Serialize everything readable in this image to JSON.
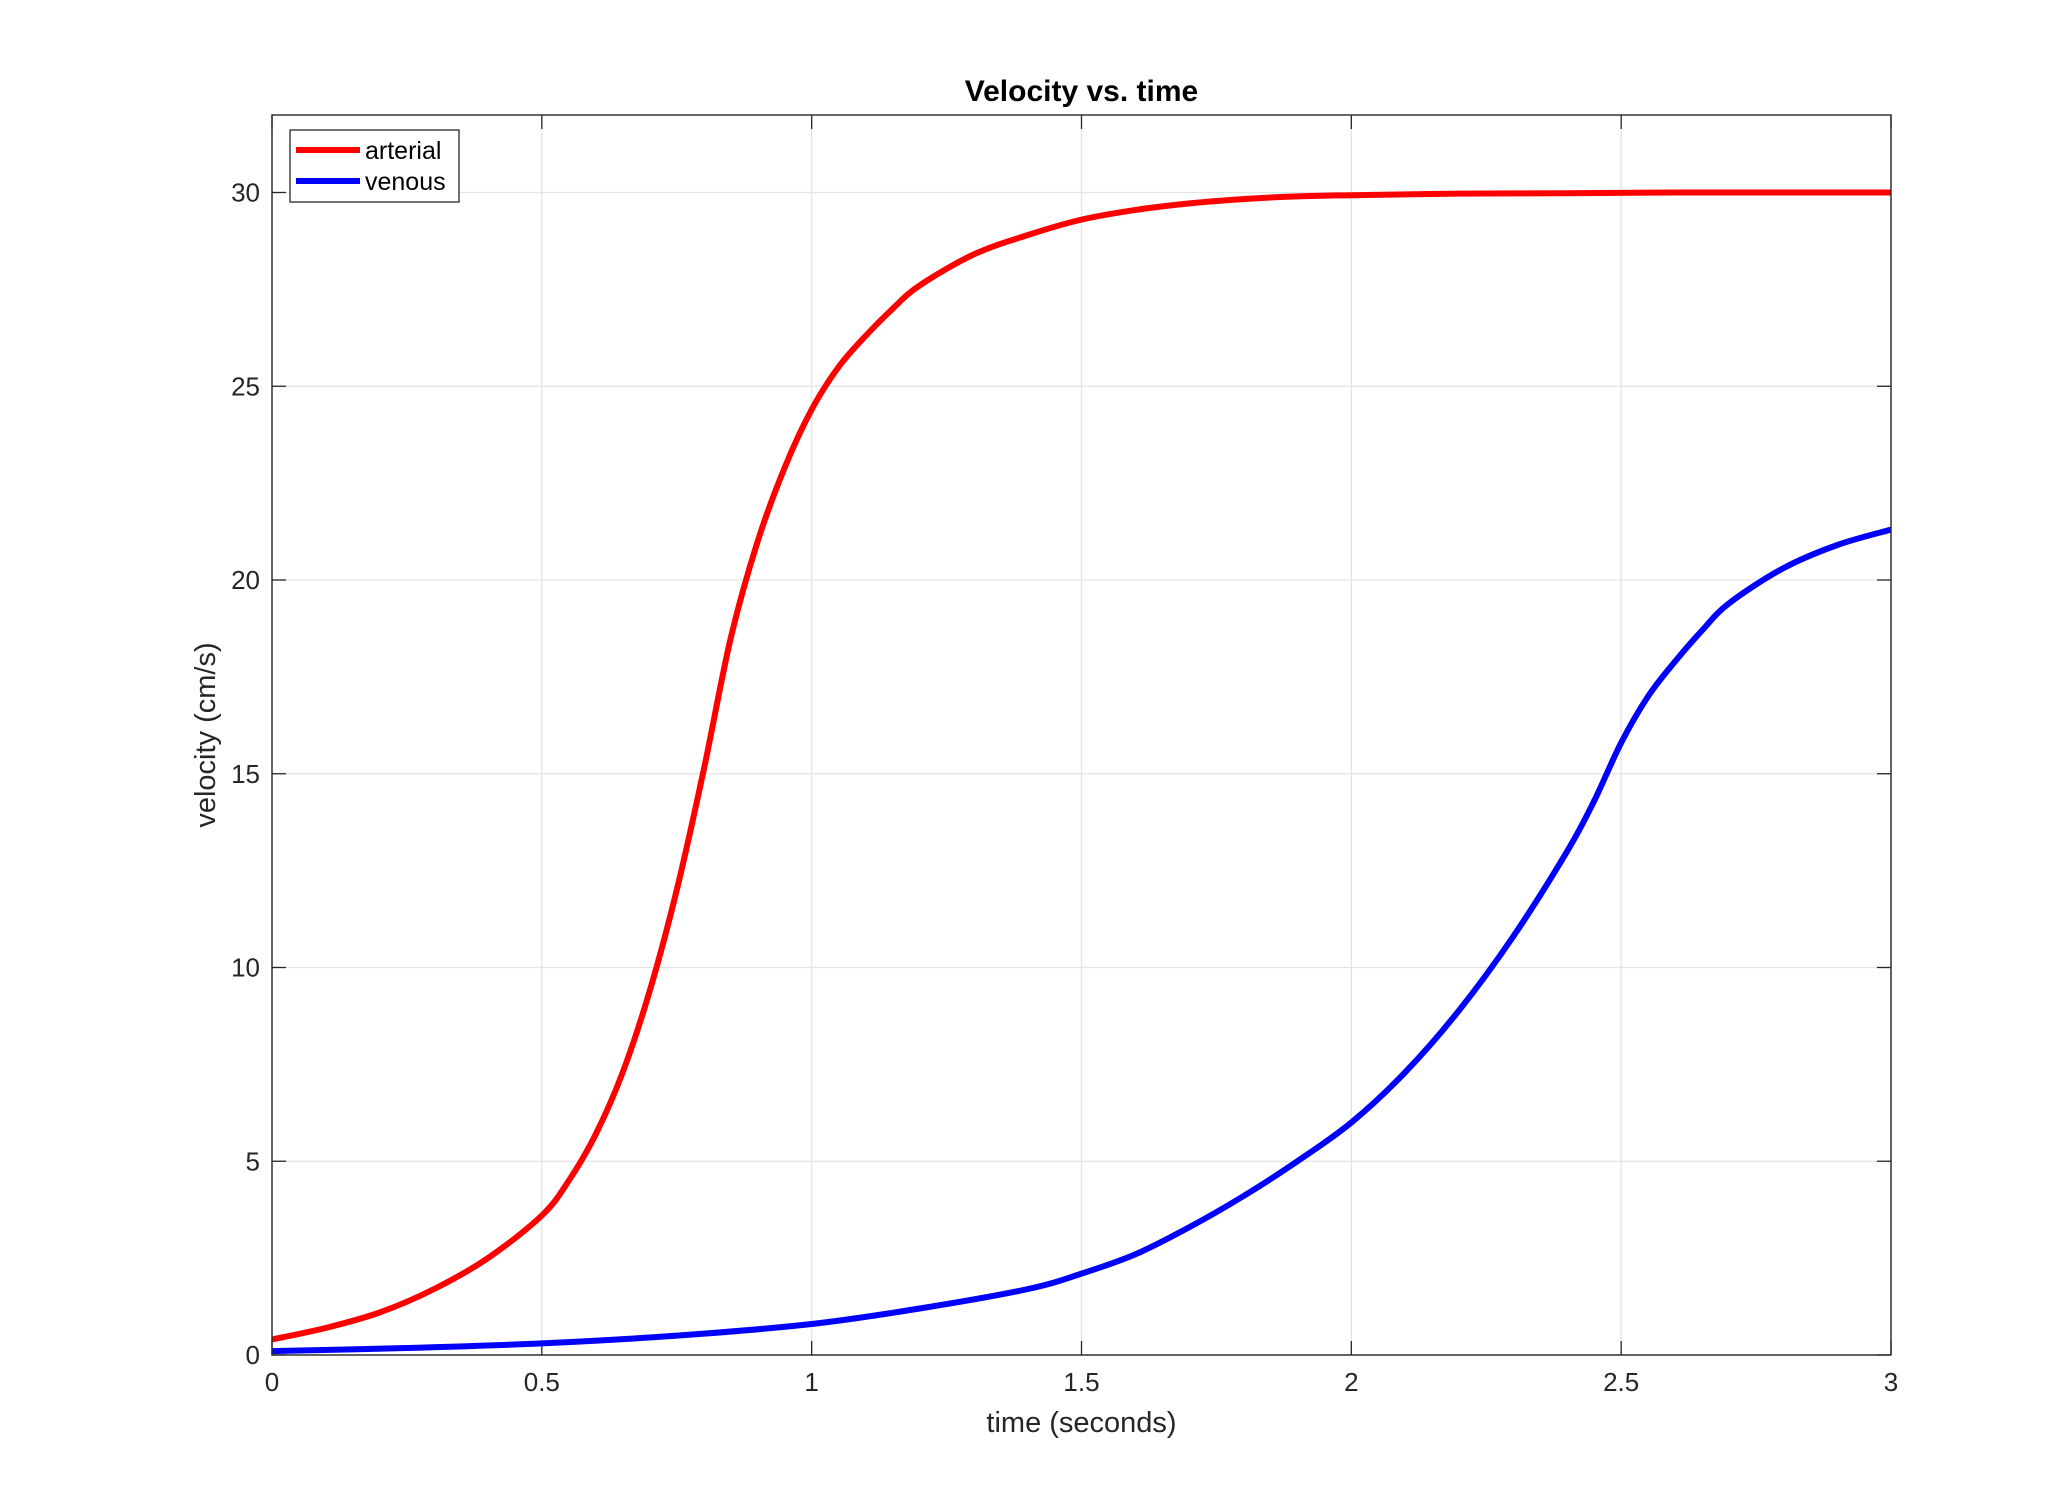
{
  "chart_data": {
    "type": "line",
    "title": "Velocity vs. time",
    "xlabel": "time (seconds)",
    "ylabel": "velocity (cm/s)",
    "xlim": [
      0,
      3
    ],
    "ylim": [
      0,
      32
    ],
    "xticks": [
      0,
      0.5,
      1,
      1.5,
      2,
      2.5,
      3
    ],
    "xtick_labels": [
      "0",
      "0.5",
      "1",
      "1.5",
      "2",
      "2.5",
      "3"
    ],
    "yticks": [
      0,
      5,
      10,
      15,
      20,
      25,
      30
    ],
    "ytick_labels": [
      "0",
      "5",
      "10",
      "15",
      "20",
      "25",
      "30"
    ],
    "grid": true,
    "legend": {
      "position": "top-left",
      "entries": [
        "arterial",
        "venous"
      ]
    },
    "series": [
      {
        "name": "arterial",
        "color": "#ff0000",
        "x": [
          0,
          0.1,
          0.2,
          0.3,
          0.4,
          0.5,
          0.55,
          0.6,
          0.65,
          0.7,
          0.75,
          0.8,
          0.85,
          0.9,
          0.95,
          1.0,
          1.05,
          1.1,
          1.15,
          1.2,
          1.3,
          1.4,
          1.5,
          1.6,
          1.7,
          1.8,
          1.9,
          2.0,
          2.2,
          2.4,
          2.6,
          2.8,
          3.0
        ],
        "y": [
          0.4,
          0.7,
          1.1,
          1.7,
          2.5,
          3.6,
          4.5,
          5.7,
          7.3,
          9.4,
          12.0,
          15.1,
          18.5,
          21.0,
          22.9,
          24.4,
          25.5,
          26.3,
          27.0,
          27.6,
          28.4,
          28.9,
          29.3,
          29.55,
          29.72,
          29.83,
          29.9,
          29.93,
          29.97,
          29.98,
          30.0,
          30.0,
          30.0
        ]
      },
      {
        "name": "venous",
        "color": "#0000ff",
        "x": [
          0,
          0.25,
          0.5,
          0.75,
          1.0,
          1.2,
          1.4,
          1.5,
          1.6,
          1.7,
          1.8,
          1.9,
          2.0,
          2.1,
          2.2,
          2.3,
          2.4,
          2.45,
          2.5,
          2.55,
          2.6,
          2.65,
          2.7,
          2.8,
          2.9,
          3.0
        ],
        "y": [
          0.1,
          0.18,
          0.3,
          0.5,
          0.8,
          1.2,
          1.7,
          2.1,
          2.6,
          3.3,
          4.1,
          5.0,
          6.0,
          7.3,
          8.9,
          10.8,
          13.0,
          14.3,
          15.8,
          17.0,
          17.9,
          18.7,
          19.4,
          20.3,
          20.9,
          21.3
        ]
      }
    ]
  }
}
